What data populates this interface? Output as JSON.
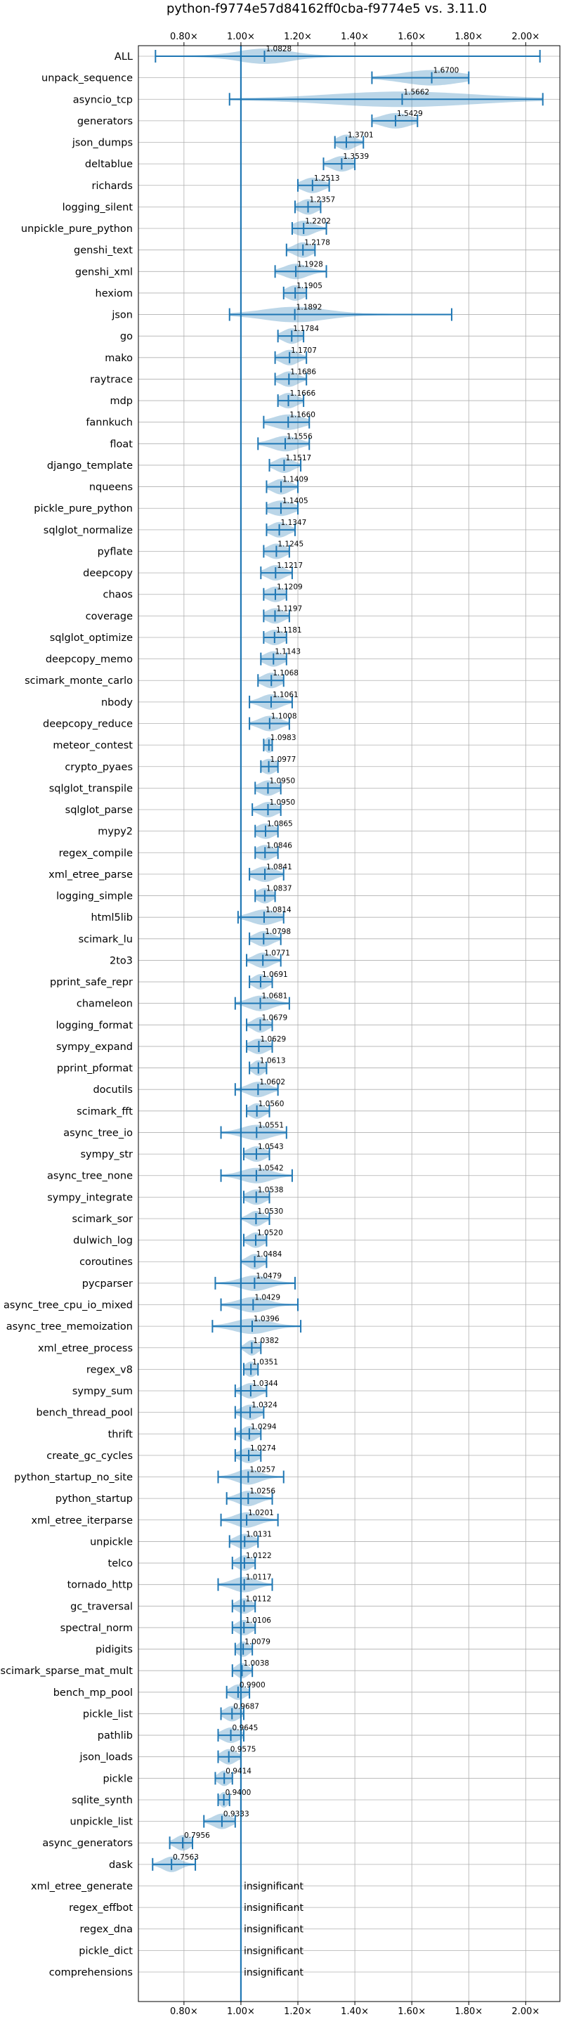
{
  "chart_data": {
    "type": "violin",
    "title": "python-f9774e57d84162ff0cba-f9774e5 vs. 3.11.0",
    "xlabel": "",
    "ylabel": "",
    "xlim": [
      0.64,
      2.12
    ],
    "reference_line": 1.0,
    "grid": true,
    "x_ticks": [
      {
        "value": 0.8,
        "label": "0.80×"
      },
      {
        "value": 1.0,
        "label": "1.00×"
      },
      {
        "value": 1.2,
        "label": "1.20×"
      },
      {
        "value": 1.4,
        "label": "1.40×"
      },
      {
        "value": 1.6,
        "label": "1.60×"
      },
      {
        "value": 1.8,
        "label": "1.80×"
      },
      {
        "value": 2.0,
        "label": "2.00×"
      }
    ],
    "insignificant_label": "insignificant",
    "benchmarks": [
      {
        "name": "ALL",
        "median": 1.0828,
        "label": "1.0828",
        "min": 0.7,
        "max": 2.05,
        "spread": 0.09
      },
      {
        "name": "unpack_sequence",
        "median": 1.67,
        "label": "1.6700",
        "min": 1.46,
        "max": 1.8,
        "spread": 0.1
      },
      {
        "name": "asyncio_tcp",
        "median": 1.5662,
        "label": "1.5662",
        "min": 0.96,
        "max": 2.06,
        "spread": 0.25
      },
      {
        "name": "generators",
        "median": 1.5429,
        "label": "1.5429",
        "min": 1.46,
        "max": 1.62,
        "spread": 0.05
      },
      {
        "name": "json_dumps",
        "median": 1.3701,
        "label": "1.3701",
        "min": 1.33,
        "max": 1.43,
        "spread": 0.03
      },
      {
        "name": "deltablue",
        "median": 1.3539,
        "label": "1.3539",
        "min": 1.29,
        "max": 1.4,
        "spread": 0.035
      },
      {
        "name": "richards",
        "median": 1.2513,
        "label": "1.2513",
        "min": 1.2,
        "max": 1.31,
        "spread": 0.035
      },
      {
        "name": "logging_silent",
        "median": 1.2357,
        "label": "1.2357",
        "min": 1.19,
        "max": 1.28,
        "spread": 0.03
      },
      {
        "name": "unpickle_pure_python",
        "median": 1.2202,
        "label": "1.2202",
        "min": 1.18,
        "max": 1.3,
        "spread": 0.035
      },
      {
        "name": "genshi_text",
        "median": 1.2178,
        "label": "1.2178",
        "min": 1.16,
        "max": 1.26,
        "spread": 0.03
      },
      {
        "name": "genshi_xml",
        "median": 1.1928,
        "label": "1.1928",
        "min": 1.12,
        "max": 1.3,
        "spread": 0.04
      },
      {
        "name": "hexiom",
        "median": 1.1905,
        "label": "1.1905",
        "min": 1.15,
        "max": 1.23,
        "spread": 0.03
      },
      {
        "name": "json",
        "median": 1.1892,
        "label": "1.1892",
        "min": 0.96,
        "max": 1.74,
        "spread": 0.11
      },
      {
        "name": "go",
        "median": 1.1784,
        "label": "1.1784",
        "min": 1.13,
        "max": 1.22,
        "spread": 0.03
      },
      {
        "name": "mako",
        "median": 1.1707,
        "label": "1.1707",
        "min": 1.12,
        "max": 1.23,
        "spread": 0.03
      },
      {
        "name": "raytrace",
        "median": 1.1686,
        "label": "1.1686",
        "min": 1.12,
        "max": 1.23,
        "spread": 0.03
      },
      {
        "name": "mdp",
        "median": 1.1666,
        "label": "1.1666",
        "min": 1.13,
        "max": 1.22,
        "spread": 0.03
      },
      {
        "name": "fannkuch",
        "median": 1.166,
        "label": "1.1660",
        "min": 1.08,
        "max": 1.24,
        "spread": 0.05
      },
      {
        "name": "float",
        "median": 1.1556,
        "label": "1.1556",
        "min": 1.06,
        "max": 1.24,
        "spread": 0.045
      },
      {
        "name": "django_template",
        "median": 1.1517,
        "label": "1.1517",
        "min": 1.1,
        "max": 1.21,
        "spread": 0.03
      },
      {
        "name": "nqueens",
        "median": 1.1409,
        "label": "1.1409",
        "min": 1.09,
        "max": 1.2,
        "spread": 0.03
      },
      {
        "name": "pickle_pure_python",
        "median": 1.1405,
        "label": "1.1405",
        "min": 1.09,
        "max": 1.2,
        "spread": 0.04
      },
      {
        "name": "sqlglot_normalize",
        "median": 1.1347,
        "label": "1.1347",
        "min": 1.09,
        "max": 1.19,
        "spread": 0.03
      },
      {
        "name": "pyflate",
        "median": 1.1245,
        "label": "1.1245",
        "min": 1.08,
        "max": 1.17,
        "spread": 0.03
      },
      {
        "name": "deepcopy",
        "median": 1.1217,
        "label": "1.1217",
        "min": 1.07,
        "max": 1.18,
        "spread": 0.03
      },
      {
        "name": "chaos",
        "median": 1.1209,
        "label": "1.1209",
        "min": 1.08,
        "max": 1.16,
        "spread": 0.03
      },
      {
        "name": "coverage",
        "median": 1.1197,
        "label": "1.1197",
        "min": 1.08,
        "max": 1.17,
        "spread": 0.03
      },
      {
        "name": "sqlglot_optimize",
        "median": 1.1181,
        "label": "1.1181",
        "min": 1.08,
        "max": 1.16,
        "spread": 0.03
      },
      {
        "name": "deepcopy_memo",
        "median": 1.1143,
        "label": "1.1143",
        "min": 1.07,
        "max": 1.16,
        "spread": 0.03
      },
      {
        "name": "scimark_monte_carlo",
        "median": 1.1068,
        "label": "1.1068",
        "min": 1.06,
        "max": 1.15,
        "spread": 0.03
      },
      {
        "name": "nbody",
        "median": 1.1061,
        "label": "1.1061",
        "min": 1.03,
        "max": 1.18,
        "spread": 0.035
      },
      {
        "name": "deepcopy_reduce",
        "median": 1.1008,
        "label": "1.1008",
        "min": 1.03,
        "max": 1.17,
        "spread": 0.035
      },
      {
        "name": "meteor_contest",
        "median": 1.0983,
        "label": "1.0983",
        "min": 1.08,
        "max": 1.11,
        "spread": 0.015
      },
      {
        "name": "crypto_pyaes",
        "median": 1.0977,
        "label": "1.0977",
        "min": 1.07,
        "max": 1.13,
        "spread": 0.025
      },
      {
        "name": "sqlglot_transpile",
        "median": 1.095,
        "label": "1.0950",
        "min": 1.05,
        "max": 1.14,
        "spread": 0.03
      },
      {
        "name": "sqlglot_parse",
        "median": 1.095,
        "label": "1.0950",
        "min": 1.04,
        "max": 1.14,
        "spread": 0.03
      },
      {
        "name": "mypy2",
        "median": 1.0865,
        "label": "1.0865",
        "min": 1.05,
        "max": 1.13,
        "spread": 0.03
      },
      {
        "name": "regex_compile",
        "median": 1.0846,
        "label": "1.0846",
        "min": 1.05,
        "max": 1.13,
        "spread": 0.03
      },
      {
        "name": "xml_etree_parse",
        "median": 1.0841,
        "label": "1.0841",
        "min": 1.03,
        "max": 1.15,
        "spread": 0.035
      },
      {
        "name": "logging_simple",
        "median": 1.0837,
        "label": "1.0837",
        "min": 1.05,
        "max": 1.12,
        "spread": 0.025
      },
      {
        "name": "html5lib",
        "median": 1.0814,
        "label": "1.0814",
        "min": 0.99,
        "max": 1.15,
        "spread": 0.045
      },
      {
        "name": "scimark_lu",
        "median": 1.0798,
        "label": "1.0798",
        "min": 1.03,
        "max": 1.14,
        "spread": 0.03
      },
      {
        "name": "2to3",
        "median": 1.0771,
        "label": "1.0771",
        "min": 1.02,
        "max": 1.14,
        "spread": 0.03
      },
      {
        "name": "pprint_safe_repr",
        "median": 1.0691,
        "label": "1.0691",
        "min": 1.03,
        "max": 1.11,
        "spread": 0.025
      },
      {
        "name": "chameleon",
        "median": 1.0681,
        "label": "1.0681",
        "min": 0.98,
        "max": 1.17,
        "spread": 0.04
      },
      {
        "name": "logging_format",
        "median": 1.0679,
        "label": "1.0679",
        "min": 1.02,
        "max": 1.11,
        "spread": 0.025
      },
      {
        "name": "sympy_expand",
        "median": 1.0629,
        "label": "1.0629",
        "min": 1.02,
        "max": 1.11,
        "spread": 0.03
      },
      {
        "name": "pprint_pformat",
        "median": 1.0613,
        "label": "1.0613",
        "min": 1.03,
        "max": 1.09,
        "spread": 0.02
      },
      {
        "name": "docutils",
        "median": 1.0602,
        "label": "1.0602",
        "min": 0.98,
        "max": 1.13,
        "spread": 0.035
      },
      {
        "name": "scimark_fft",
        "median": 1.056,
        "label": "1.0560",
        "min": 1.02,
        "max": 1.1,
        "spread": 0.025
      },
      {
        "name": "async_tree_io",
        "median": 1.0551,
        "label": "1.0551",
        "min": 0.93,
        "max": 1.16,
        "spread": 0.05
      },
      {
        "name": "sympy_str",
        "median": 1.0543,
        "label": "1.0543",
        "min": 1.01,
        "max": 1.1,
        "spread": 0.03
      },
      {
        "name": "async_tree_none",
        "median": 1.0542,
        "label": "1.0542",
        "min": 0.93,
        "max": 1.18,
        "spread": 0.05
      },
      {
        "name": "sympy_integrate",
        "median": 1.0538,
        "label": "1.0538",
        "min": 1.01,
        "max": 1.1,
        "spread": 0.03
      },
      {
        "name": "scimark_sor",
        "median": 1.053,
        "label": "1.0530",
        "min": 1.0,
        "max": 1.1,
        "spread": 0.025
      },
      {
        "name": "dulwich_log",
        "median": 1.052,
        "label": "1.0520",
        "min": 1.01,
        "max": 1.09,
        "spread": 0.025
      },
      {
        "name": "coroutines",
        "median": 1.0484,
        "label": "1.0484",
        "min": 1.0,
        "max": 1.09,
        "spread": 0.025
      },
      {
        "name": "pycparser",
        "median": 1.0479,
        "label": "1.0479",
        "min": 0.91,
        "max": 1.19,
        "spread": 0.05
      },
      {
        "name": "async_tree_cpu_io_mixed",
        "median": 1.0429,
        "label": "1.0429",
        "min": 0.93,
        "max": 1.2,
        "spread": 0.05
      },
      {
        "name": "async_tree_memoization",
        "median": 1.0396,
        "label": "1.0396",
        "min": 0.9,
        "max": 1.21,
        "spread": 0.06
      },
      {
        "name": "xml_etree_process",
        "median": 1.0382,
        "label": "1.0382",
        "min": 1.0,
        "max": 1.07,
        "spread": 0.02
      },
      {
        "name": "regex_v8",
        "median": 1.0351,
        "label": "1.0351",
        "min": 1.01,
        "max": 1.06,
        "spread": 0.02
      },
      {
        "name": "sympy_sum",
        "median": 1.0344,
        "label": "1.0344",
        "min": 0.98,
        "max": 1.09,
        "spread": 0.03
      },
      {
        "name": "bench_thread_pool",
        "median": 1.0324,
        "label": "1.0324",
        "min": 0.98,
        "max": 1.08,
        "spread": 0.03
      },
      {
        "name": "thrift",
        "median": 1.0294,
        "label": "1.0294",
        "min": 0.98,
        "max": 1.07,
        "spread": 0.025
      },
      {
        "name": "create_gc_cycles",
        "median": 1.0274,
        "label": "1.0274",
        "min": 0.98,
        "max": 1.07,
        "spread": 0.03
      },
      {
        "name": "python_startup_no_site",
        "median": 1.0257,
        "label": "1.0257",
        "min": 0.92,
        "max": 1.15,
        "spread": 0.04
      },
      {
        "name": "python_startup",
        "median": 1.0256,
        "label": "1.0256",
        "min": 0.95,
        "max": 1.11,
        "spread": 0.035
      },
      {
        "name": "xml_etree_iterparse",
        "median": 1.0201,
        "label": "1.0201",
        "min": 0.93,
        "max": 1.13,
        "spread": 0.04
      },
      {
        "name": "unpickle",
        "median": 1.0131,
        "label": "1.0131",
        "min": 0.96,
        "max": 1.06,
        "spread": 0.03
      },
      {
        "name": "telco",
        "median": 1.0122,
        "label": "1.0122",
        "min": 0.97,
        "max": 1.05,
        "spread": 0.025
      },
      {
        "name": "tornado_http",
        "median": 1.0117,
        "label": "1.0117",
        "min": 0.92,
        "max": 1.11,
        "spread": 0.04
      },
      {
        "name": "gc_traversal",
        "median": 1.0112,
        "label": "1.0112",
        "min": 0.97,
        "max": 1.05,
        "spread": 0.025
      },
      {
        "name": "spectral_norm",
        "median": 1.0106,
        "label": "1.0106",
        "min": 0.97,
        "max": 1.05,
        "spread": 0.025
      },
      {
        "name": "pidigits",
        "median": 1.0079,
        "label": "1.0079",
        "min": 0.98,
        "max": 1.04,
        "spread": 0.02
      },
      {
        "name": "scimark_sparse_mat_mult",
        "median": 1.0038,
        "label": "1.0038",
        "min": 0.97,
        "max": 1.04,
        "spread": 0.02
      },
      {
        "name": "bench_mp_pool",
        "median": 0.99,
        "label": "0.9900",
        "min": 0.95,
        "max": 1.03,
        "spread": 0.025
      },
      {
        "name": "pickle_list",
        "median": 0.9687,
        "label": "0.9687",
        "min": 0.93,
        "max": 1.01,
        "spread": 0.025
      },
      {
        "name": "pathlib",
        "median": 0.9645,
        "label": "0.9645",
        "min": 0.92,
        "max": 1.01,
        "spread": 0.03
      },
      {
        "name": "json_loads",
        "median": 0.9575,
        "label": "0.9575",
        "min": 0.92,
        "max": 1.0,
        "spread": 0.025
      },
      {
        "name": "pickle",
        "median": 0.9414,
        "label": "0.9414",
        "min": 0.91,
        "max": 0.97,
        "spread": 0.02
      },
      {
        "name": "sqlite_synth",
        "median": 0.94,
        "label": "0.9400",
        "min": 0.92,
        "max": 0.96,
        "spread": 0.015
      },
      {
        "name": "unpickle_list",
        "median": 0.9333,
        "label": "0.9333",
        "min": 0.87,
        "max": 0.98,
        "spread": 0.03
      },
      {
        "name": "async_generators",
        "median": 0.7956,
        "label": "0.7956",
        "min": 0.75,
        "max": 0.83,
        "spread": 0.025
      },
      {
        "name": "dask",
        "median": 0.7563,
        "label": "0.7563",
        "min": 0.69,
        "max": 0.84,
        "spread": 0.03
      },
      {
        "name": "xml_etree_generate",
        "median": null,
        "label": null,
        "min": null,
        "max": null,
        "spread": null
      },
      {
        "name": "regex_effbot",
        "median": null,
        "label": null,
        "min": null,
        "max": null,
        "spread": null
      },
      {
        "name": "regex_dna",
        "median": null,
        "label": null,
        "min": null,
        "max": null,
        "spread": null
      },
      {
        "name": "pickle_dict",
        "median": null,
        "label": null,
        "min": null,
        "max": null,
        "spread": null
      },
      {
        "name": "comprehensions",
        "median": null,
        "label": null,
        "min": null,
        "max": null,
        "spread": null
      }
    ]
  }
}
